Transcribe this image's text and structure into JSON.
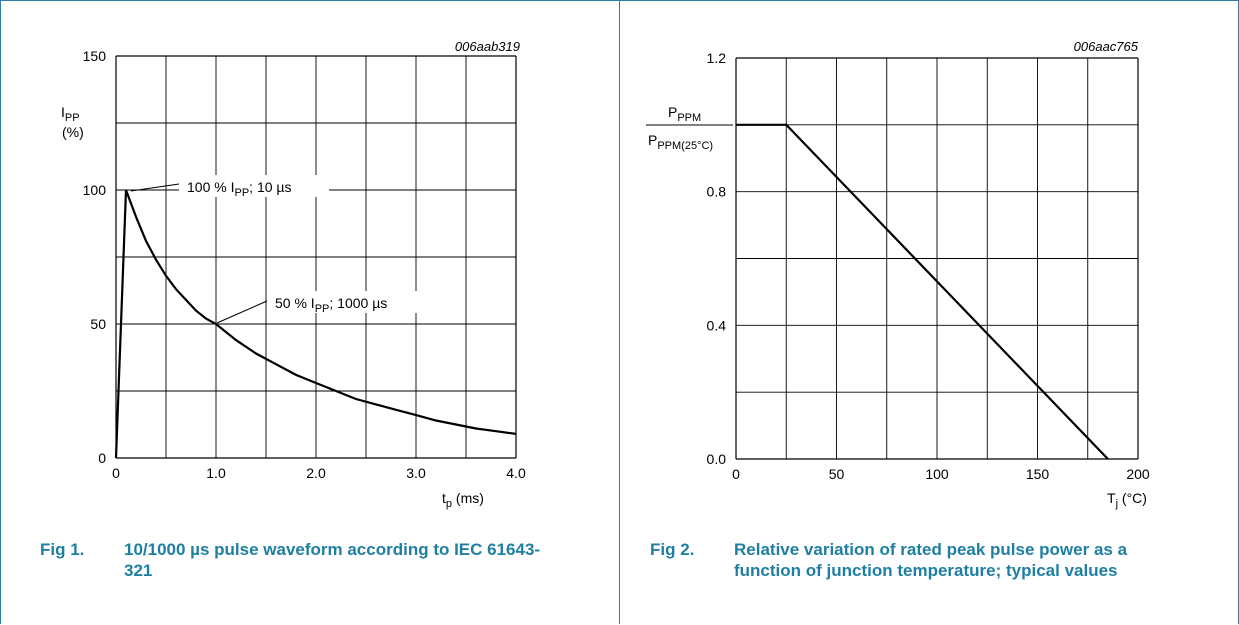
{
  "colors": {
    "accent": "#1f7fa3",
    "border": "#2a7fa8",
    "grid": "#000000",
    "curve": "#000000"
  },
  "figures": [
    {
      "fig_no": "Fig 1.",
      "title": "10/1000 µs pulse waveform according to IEC 61643-321",
      "code": "006aab319",
      "ylabel_main": "I",
      "ylabel_sub": "PP",
      "ylabel_unit": "(%)",
      "xlabel_main": "t",
      "xlabel_sub": "p",
      "xlabel_unit": " (ms)",
      "annotations": [
        {
          "text_main": "100 % I",
          "text_sub": "PP",
          "text_tail": "; 10 µs"
        },
        {
          "text_main": "50 % I",
          "text_sub": "PP",
          "text_tail": "; 1000 µs"
        }
      ]
    },
    {
      "fig_no": "Fig 2.",
      "title": "Relative variation of rated peak pulse power as a function of junction temperature; typical values",
      "code": "006aac765",
      "ylabel_num_main": "P",
      "ylabel_num_sub": "PPM",
      "ylabel_den_main": "P",
      "ylabel_den_sub": "PPM(25°C)",
      "xlabel_main": "T",
      "xlabel_sub": "j",
      "xlabel_unit": " (°C)"
    }
  ],
  "chart_data": [
    {
      "type": "line",
      "xlim": [
        0,
        4.0
      ],
      "ylim": [
        0,
        150
      ],
      "x_ticks": [
        "0",
        "1.0",
        "2.0",
        "3.0",
        "4.0"
      ],
      "x_tick_values": [
        0,
        1.0,
        2.0,
        3.0,
        4.0
      ],
      "y_ticks": [
        "0",
        "50",
        "100",
        "150"
      ],
      "y_tick_values": [
        0,
        50,
        100,
        150
      ],
      "grid": true,
      "series": [
        {
          "x": [
            0,
            0.1,
            0.2,
            0.3,
            0.4,
            0.5,
            0.6,
            0.7,
            0.8,
            0.9,
            1.0,
            1.2,
            1.4,
            1.6,
            1.8,
            2.0,
            2.2,
            2.4,
            2.6,
            2.8,
            3.0,
            3.2,
            3.4,
            3.6,
            3.8,
            4.0
          ],
          "y": [
            0,
            100,
            90,
            81,
            74,
            68,
            63,
            59,
            55,
            52,
            50,
            44,
            39,
            35,
            31,
            28,
            25,
            22,
            20,
            18,
            16,
            14,
            12.5,
            11,
            10,
            9
          ]
        }
      ]
    },
    {
      "type": "line",
      "xlim": [
        0,
        200
      ],
      "ylim": [
        0.0,
        1.2
      ],
      "x_ticks": [
        "0",
        "50",
        "100",
        "150",
        "200"
      ],
      "x_tick_values": [
        0,
        50,
        100,
        150,
        200
      ],
      "y_ticks": [
        "0.0",
        "0.4",
        "0.8",
        "1.2"
      ],
      "y_tick_values": [
        0.0,
        0.4,
        0.8,
        1.2
      ],
      "grid": true,
      "series": [
        {
          "x": [
            0,
            25,
            185
          ],
          "y": [
            1.0,
            1.0,
            0.0
          ]
        }
      ]
    }
  ]
}
